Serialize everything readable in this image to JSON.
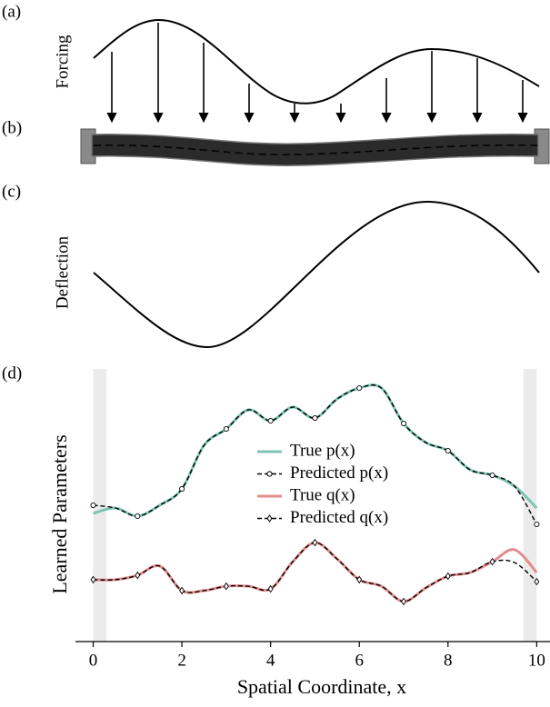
{
  "panels": {
    "a": {
      "label": "(a)",
      "ylabel": "Forcing"
    },
    "b": {
      "label": "(b)"
    },
    "c": {
      "label": "(c)",
      "ylabel": "Deflection"
    },
    "d": {
      "label": "(d)"
    }
  },
  "chart_data": {
    "type": "line",
    "xlabel": "Spatial Coordinate, x",
    "ylabel": "Learned Parameters",
    "x": [
      0,
      0.5,
      1,
      1.5,
      2,
      2.5,
      3,
      3.5,
      4,
      4.5,
      5,
      5.5,
      6,
      6.5,
      7,
      7.5,
      8,
      8.5,
      9,
      9.5,
      10
    ],
    "xlim": [
      -0.4,
      10.3
    ],
    "ylim": [
      0,
      10
    ],
    "xticks": [
      0,
      2,
      4,
      6,
      8,
      10
    ],
    "shaded_regions": [
      [
        0,
        0.3
      ],
      [
        9.7,
        10
      ]
    ],
    "legend": "center",
    "series": [
      {
        "name": "True p(x)",
        "color": "#7fc4b4",
        "style": "solid",
        "values": [
          4.7,
          4.9,
          4.6,
          5.0,
          5.6,
          7.2,
          7.8,
          8.5,
          8.1,
          8.6,
          8.2,
          8.9,
          9.3,
          9.3,
          8.0,
          7.3,
          7.0,
          6.3,
          6.1,
          5.7,
          4.9
        ]
      },
      {
        "name": "Predicted p(x)",
        "color": "#000000",
        "style": "dashed",
        "marker": "circle",
        "values": [
          5.0,
          4.9,
          4.6,
          5.0,
          5.6,
          7.2,
          7.8,
          8.5,
          8.1,
          8.6,
          8.2,
          8.9,
          9.3,
          9.3,
          8.0,
          7.3,
          7.0,
          6.3,
          6.1,
          5.7,
          4.3
        ]
      },
      {
        "name": "True q(x)",
        "color": "#e38d8d",
        "style": "solid",
        "values": [
          2.27,
          2.27,
          2.43,
          2.77,
          1.87,
          1.87,
          2.03,
          2.03,
          1.93,
          2.93,
          3.63,
          3.03,
          2.27,
          2.03,
          1.47,
          1.97,
          2.4,
          2.53,
          2.93,
          3.37,
          2.53
        ]
      },
      {
        "name": "Predicted q(x)",
        "color": "#000000",
        "style": "dashed",
        "marker": "diamond",
        "values": [
          2.27,
          2.27,
          2.43,
          2.77,
          1.87,
          1.87,
          2.03,
          2.03,
          1.93,
          2.93,
          3.63,
          3.03,
          2.27,
          2.03,
          1.47,
          1.97,
          2.4,
          2.53,
          2.93,
          2.9,
          2.2
        ]
      }
    ]
  }
}
